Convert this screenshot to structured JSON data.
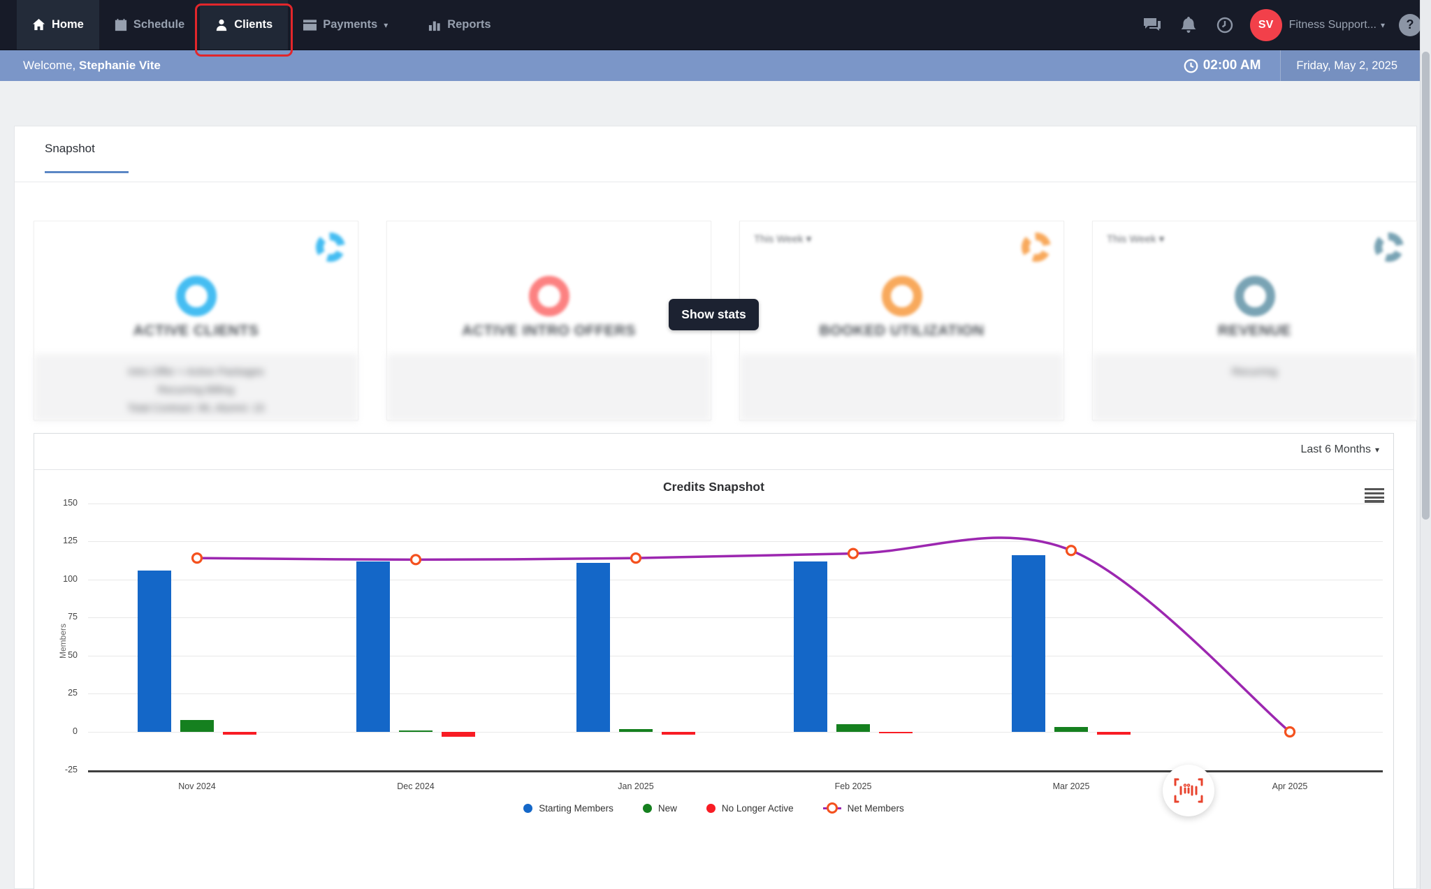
{
  "nav": {
    "items": [
      {
        "label": "Home"
      },
      {
        "label": "Schedule"
      },
      {
        "label": "Clients"
      },
      {
        "label": "Payments"
      },
      {
        "label": "Reports"
      }
    ],
    "avatar_initials": "SV",
    "account_label": "Fitness Support...",
    "help_label": "?"
  },
  "welcome": {
    "prefix": "Welcome, ",
    "name": "Stephanie Vite",
    "time": "02:00 AM",
    "date": "Friday, May 2, 2025"
  },
  "tabs": {
    "snapshot": "Snapshot"
  },
  "cards": [
    {
      "title": "ACTIVE CLIENTS",
      "dropdown": "",
      "accent": "#45bdf2",
      "has_gear": true,
      "footer_lines": [
        "Intro Offer + Active Packages",
        "Recurring Billing",
        "Total Contract: 96, Alumni: 15"
      ]
    },
    {
      "title": "ACTIVE INTRO OFFERS",
      "dropdown": "",
      "accent": "#fc8181",
      "has_gear": false,
      "footer_lines": []
    },
    {
      "title": "BOOKED UTILIZATION",
      "dropdown": "This Week ▾",
      "accent": "#f8a95c",
      "has_gear": true,
      "footer_lines": []
    },
    {
      "title": "REVENUE",
      "dropdown": "This Week ▾",
      "accent": "#79a3b4",
      "has_gear": true,
      "footer_lines": [
        "Recurring"
      ]
    }
  ],
  "overlay": {
    "show_stats": "Show stats"
  },
  "chart_panel": {
    "range_label": "Last 6 Months"
  },
  "chart_data": {
    "type": "bar",
    "subtype": "grouped bars with line overlay",
    "title": "Credits Snapshot",
    "ylabel": "Members",
    "categories": [
      "Nov 2024",
      "Dec 2024",
      "Jan 2025",
      "Feb 2025",
      "Mar 2025",
      "Apr 2025"
    ],
    "series": [
      {
        "name": "Starting Members",
        "type": "bar",
        "color": "#1467c8",
        "values": [
          106,
          112,
          111,
          112,
          116,
          null
        ]
      },
      {
        "name": "New",
        "type": "bar",
        "color": "#15801f",
        "values": [
          8,
          1,
          2,
          5,
          3,
          null
        ]
      },
      {
        "name": "No Longer Active",
        "type": "bar",
        "color": "#f81c24",
        "values": [
          -2,
          -3,
          -2,
          -1,
          -2,
          null
        ]
      },
      {
        "name": "Net Members",
        "type": "line",
        "color": "#9c27b0",
        "marker_color": "#f4511e",
        "values": [
          114,
          113,
          114,
          117,
          119,
          0
        ]
      }
    ],
    "ylim": [
      -25,
      150
    ],
    "yticks": [
      150,
      125,
      100,
      75,
      50,
      25,
      0,
      -25
    ],
    "grid": true,
    "legend_position": "bottom"
  }
}
